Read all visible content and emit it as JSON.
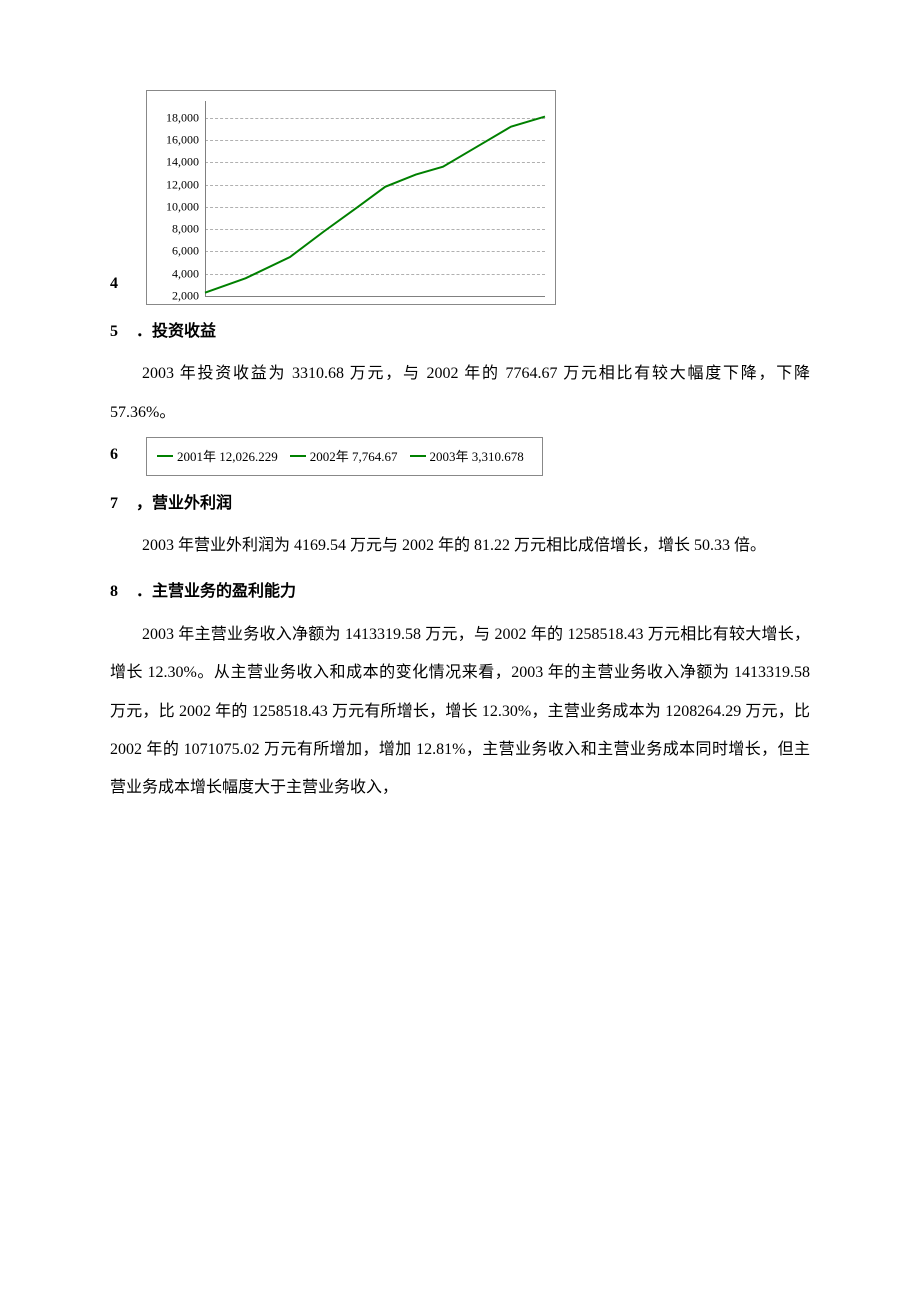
{
  "chart4": {
    "type": "line",
    "y_ticks": [
      2000,
      4000,
      6000,
      8000,
      10000,
      12000,
      14000,
      16000,
      18000
    ],
    "y_tick_labels": [
      "2,000",
      "4,000",
      "6,000",
      "8,000",
      "10,000",
      "12,000",
      "14,000",
      "16,000",
      "18,000"
    ],
    "ylim": [
      2000,
      19500
    ],
    "x_range": [
      0,
      10
    ],
    "line_color": "#008000",
    "line_width": 2,
    "grid_color": "#b0b0b0",
    "border_color": "#888888",
    "background_color": "#ffffff",
    "tick_fontsize": 12,
    "data_points": [
      [
        0.0,
        2300
      ],
      [
        1.2,
        3600
      ],
      [
        2.5,
        5500
      ],
      [
        3.5,
        7800
      ],
      [
        4.5,
        10000
      ],
      [
        5.3,
        11800
      ],
      [
        6.2,
        12900
      ],
      [
        7.0,
        13600
      ],
      [
        8.0,
        15400
      ],
      [
        9.0,
        17200
      ],
      [
        10.0,
        18100
      ]
    ]
  },
  "row4_num": "4",
  "section5": {
    "num": "5",
    "sep": "．",
    "title": "投资收益",
    "para": "2003 年投资收益为 3310.68 万元，与 2002 年的 7764.67 万元相比有较大幅度下降，下降 57.36%。"
  },
  "legend6": {
    "row_num": "6",
    "swatch_color": "#008000",
    "items": [
      {
        "label": "2001年 12,026.229"
      },
      {
        "label": "2002年 7,764.67"
      },
      {
        "label": "2003年 3,310.678"
      }
    ],
    "border_color": "#888888",
    "fontsize": 13
  },
  "section7": {
    "num": "7",
    "sep": "，",
    "title": "营业外利润",
    "para": "2003 年营业外利润为 4169.54 万元与 2002 年的 81.22 万元相比成倍增长，增长 50.33 倍。"
  },
  "section8": {
    "num": "8",
    "sep": "．",
    "title": "主营业务的盈利能力",
    "para": "2003 年主营业务收入净额为 1413319.58 万元，与 2002 年的 1258518.43 万元相比有较大增长，增长 12.30%。从主营业务收入和成本的变化情况来看，2003 年的主营业务收入净额为 1413319.58 万元，比 2002 年的 1258518.43 万元有所增长，增长 12.30%，主营业务成本为 1208264.29 万元，比 2002 年的 1071075.02 万元有所增加，增加 12.81%，主营业务收入和主营业务成本同时增长，但主营业务成本增长幅度大于主营业务收入，"
  }
}
